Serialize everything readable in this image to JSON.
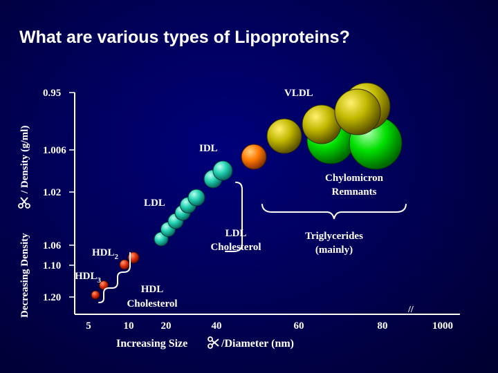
{
  "title": "What are various types of Lipoproteins?",
  "y_axis": {
    "label_prefix": "Decreasing Density",
    "label_suffix": "/ Density (g/ml)",
    "symbol": "scissors-icon",
    "ticks": [
      "0.95",
      "1.006",
      "1.02",
      "1.06",
      "1.10",
      "1.20"
    ]
  },
  "x_axis": {
    "label_prefix": "Increasing Size",
    "label_suffix": "/Diameter (nm)",
    "symbol": "scissors-icon",
    "ticks": [
      "5",
      "10",
      "20",
      "40",
      "60",
      "80",
      "1000"
    ],
    "break_mark": "//"
  },
  "labels": {
    "vldl": "VLDL",
    "idl": "IDL",
    "ldl": "LDL",
    "hdl2": "HDL",
    "hdl2_sub": "2",
    "hdl3": "HDL",
    "hdl3_sub": "3",
    "chylomicron": [
      "Chylomicron",
      "Remnants"
    ],
    "ldl_cholesterol": [
      "LDL",
      "Cholesterol"
    ],
    "triglycerides": [
      "Triglycerides",
      "(mainly)"
    ],
    "hdl_cholesterol": [
      "HDL",
      "Cholesterol"
    ]
  },
  "colors": {
    "background": "#000050",
    "text": "#ffffff",
    "axis": "#ffffff",
    "hdl": "#e03010",
    "ldl": "#20d0b0",
    "idl": "#ff7a00",
    "vldl": "#c0b800",
    "chylomicron": "#00e000"
  }
}
